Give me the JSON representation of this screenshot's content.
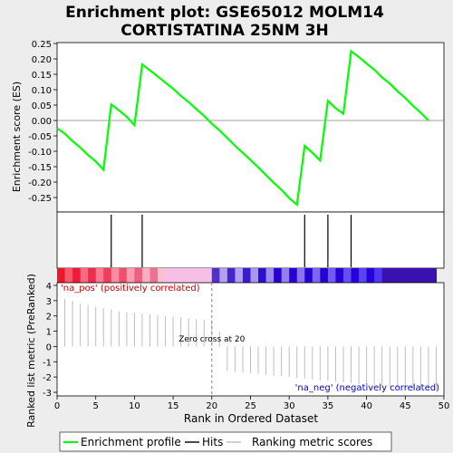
{
  "chart_data": {
    "type": "line",
    "title": "Enrichment plot: GSE65012 MOLM14\nCORTISTATINA 25NM 3H",
    "xlabel": "Rank in Ordered Dataset",
    "es_ylabel": "Enrichment score (ES)",
    "metric_ylabel": "Ranked list metric (PreRanked)",
    "x_ticks": [
      0,
      5,
      10,
      15,
      20,
      25,
      30,
      35,
      40,
      45,
      50
    ],
    "es_ticks": [
      0.25,
      0.2,
      0.15,
      0.1,
      0.05,
      0.0,
      -0.05,
      -0.1,
      -0.15,
      -0.2,
      -0.25
    ],
    "metric_ticks": [
      4,
      3,
      2,
      1,
      0,
      -1,
      -2,
      -3
    ],
    "xlim": [
      0,
      50
    ],
    "es_ylim": [
      -0.3,
      0.25
    ],
    "metric_ylim": [
      -3.2,
      4.1
    ],
    "series": [
      {
        "name": "Enrichment profile",
        "color": "#00ff00",
        "x": [
          0,
          1,
          2,
          3,
          4,
          5,
          6,
          7,
          8,
          9,
          10,
          11,
          12,
          13,
          14,
          15,
          16,
          17,
          18,
          19,
          20,
          21,
          22,
          23,
          24,
          25,
          26,
          27,
          28,
          29,
          30,
          31,
          32,
          33,
          34,
          35,
          36,
          37,
          38,
          39,
          40,
          41,
          42,
          43,
          44,
          45,
          46,
          47,
          48
        ],
        "values": [
          -0.025,
          -0.043,
          -0.067,
          -0.088,
          -0.112,
          -0.133,
          -0.16,
          0.052,
          0.033,
          0.012,
          -0.015,
          0.182,
          0.163,
          0.143,
          0.123,
          0.103,
          0.08,
          0.06,
          0.037,
          0.015,
          -0.01,
          -0.032,
          -0.057,
          -0.082,
          -0.105,
          -0.128,
          -0.152,
          -0.177,
          -0.202,
          -0.225,
          -0.252,
          -0.273,
          -0.082,
          -0.105,
          -0.13,
          0.064,
          0.04,
          0.022,
          0.225,
          0.206,
          0.185,
          0.165,
          0.14,
          0.12,
          0.095,
          0.073,
          0.048,
          0.025,
          0.0
        ]
      }
    ],
    "hits": [
      7,
      11,
      32,
      35,
      38
    ],
    "hits_label": "Hits",
    "ranking_label": "Ranking metric scores",
    "metric_values": [
      3.1,
      3.0,
      2.8,
      2.7,
      2.6,
      2.5,
      2.4,
      2.3,
      2.25,
      2.2,
      2.15,
      2.1,
      2.05,
      2.0,
      1.95,
      1.9,
      1.85,
      1.8,
      1.75,
      1.7,
      1.0,
      -1.6,
      -1.65,
      -1.7,
      -1.75,
      -1.8,
      -1.85,
      -1.9,
      -1.95,
      -2.0,
      -2.05,
      -2.1,
      -2.15,
      -2.2,
      -2.25,
      -2.3,
      -2.35,
      -2.4,
      -2.45,
      -2.5,
      -2.55,
      -2.6,
      -2.65,
      -2.7,
      -2.75,
      -2.8,
      -2.8,
      -2.85,
      -2.85
    ],
    "zero_cross": 20,
    "zero_cross_text": "Zero cross at 20",
    "pos_label": "'na_pos' (positively correlated)",
    "neg_label": "'na_neg' (negatively correlated)",
    "pos_color": "#cc0000",
    "neg_color": "#0000cc",
    "legend": [
      "Enrichment profile",
      "Hits",
      "Ranking metric scores"
    ]
  }
}
